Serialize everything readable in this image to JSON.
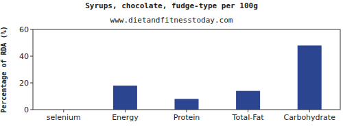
{
  "chart_data": {
    "type": "bar",
    "title": "Syrups, chocolate, fudge-type per 100g",
    "subtitle": "www.dietandfitnesstoday.com",
    "y_label": "Percentage of RDA (%)",
    "categories": [
      "selenium",
      "Energy",
      "Protein",
      "Total-Fat",
      "Carbohydrate"
    ],
    "values": [
      0,
      18,
      8,
      14,
      48
    ],
    "color": "#2b4590",
    "ylim": [
      0,
      60
    ],
    "yticks": [
      0,
      20,
      40,
      60
    ],
    "grid": false
  }
}
